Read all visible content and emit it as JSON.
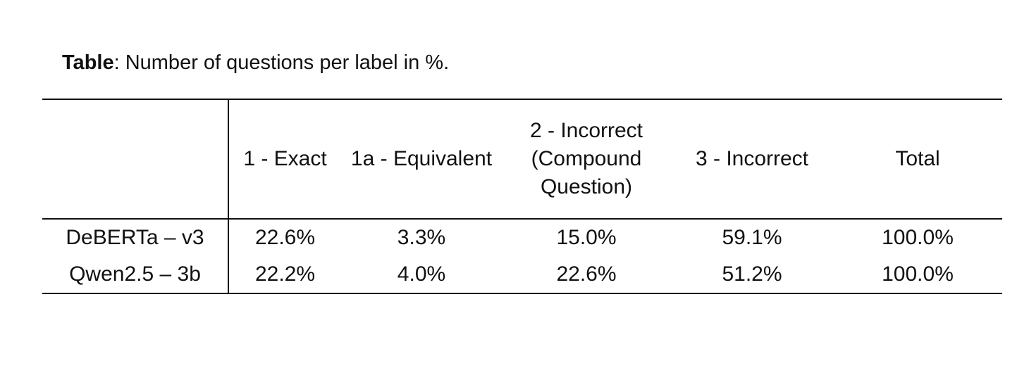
{
  "caption": {
    "label": "Table",
    "text": ": Number of questions per label in %."
  },
  "table": {
    "columns": [
      "",
      "1 - Exact",
      "1a - Equivalent",
      [
        "2 - Incorrect",
        "(Compound",
        "Question)"
      ],
      "3 - Incorrect",
      "Total"
    ],
    "rows": [
      {
        "model": "DeBERTa – v3",
        "values": [
          "22.6%",
          "3.3%",
          "15.0%",
          "59.1%",
          "100.0%"
        ]
      },
      {
        "model": "Qwen2.5 – 3b",
        "values": [
          "22.2%",
          "4.0%",
          "22.6%",
          "51.2%",
          "100.0%"
        ]
      }
    ]
  }
}
